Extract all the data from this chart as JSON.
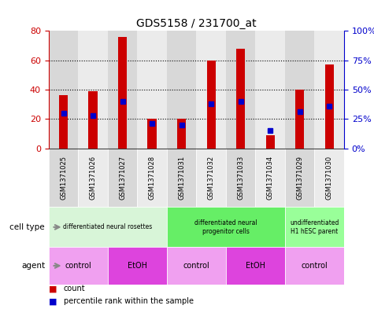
{
  "title": "GDS5158 / 231700_at",
  "samples": [
    "GSM1371025",
    "GSM1371026",
    "GSM1371027",
    "GSM1371028",
    "GSM1371031",
    "GSM1371032",
    "GSM1371033",
    "GSM1371034",
    "GSM1371029",
    "GSM1371030"
  ],
  "counts": [
    36,
    39,
    76,
    20,
    20,
    60,
    68,
    9,
    40,
    57
  ],
  "percentile_ranks": [
    30,
    28,
    40,
    21,
    20,
    38,
    40,
    15,
    31,
    36
  ],
  "ylim_left": [
    0,
    80
  ],
  "ylim_right": [
    0,
    100
  ],
  "yticks_left": [
    0,
    20,
    40,
    60,
    80
  ],
  "yticks_right": [
    0,
    25,
    50,
    75,
    100
  ],
  "ytick_labels_right": [
    "0%",
    "25%",
    "50%",
    "75%",
    "100%"
  ],
  "bar_color": "#cc0000",
  "dot_color": "#0000cc",
  "cell_type_groups": [
    {
      "label": "differentiated neural rosettes",
      "cols": [
        0,
        1,
        2,
        3
      ],
      "color": "#d8f5d8"
    },
    {
      "label": "differentiated neural\nprogenitor cells",
      "cols": [
        4,
        5,
        6,
        7
      ],
      "color": "#66ee66"
    },
    {
      "label": "undifferentiated\nH1 hESC parent",
      "cols": [
        8,
        9
      ],
      "color": "#99ff99"
    }
  ],
  "agent_groups": [
    {
      "label": "control",
      "cols": [
        0,
        1
      ],
      "color": "#f0a0f0"
    },
    {
      "label": "EtOH",
      "cols": [
        2,
        3
      ],
      "color": "#dd44dd"
    },
    {
      "label": "control",
      "cols": [
        4,
        5
      ],
      "color": "#f0a0f0"
    },
    {
      "label": "EtOH",
      "cols": [
        6,
        7
      ],
      "color": "#dd44dd"
    },
    {
      "label": "control",
      "cols": [
        8,
        9
      ],
      "color": "#f0a0f0"
    }
  ],
  "cell_type_label": "cell type",
  "agent_label": "agent",
  "bg_color": "#ffffff",
  "col_bg_even": "#d8d8d8",
  "col_bg_odd": "#ebebeb"
}
